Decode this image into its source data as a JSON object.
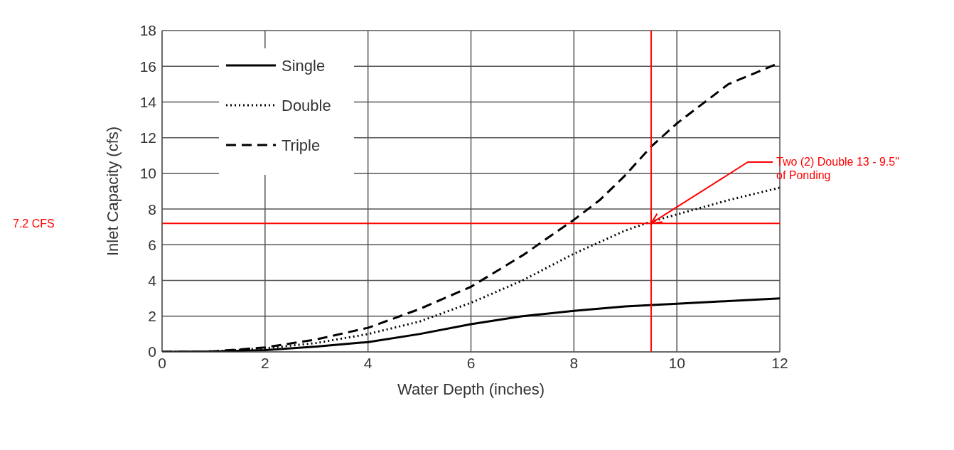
{
  "chart_data": {
    "type": "line",
    "xlabel": "Water Depth (inches)",
    "ylabel": "Inlet Capacity (cfs)",
    "xlim": [
      0,
      12
    ],
    "xticks": [
      0,
      2,
      4,
      6,
      8,
      10,
      12
    ],
    "ylim": [
      0,
      18
    ],
    "yticks": [
      0,
      2,
      4,
      6,
      8,
      10,
      12,
      14,
      16,
      18
    ],
    "grid": true,
    "legend": "top left",
    "marker": "none",
    "series": [
      {
        "name": "Single",
        "color": "#000000",
        "line_style": "solid",
        "x": [
          0,
          1,
          2,
          3,
          4,
          5,
          6,
          7,
          8,
          9,
          10,
          11,
          12
        ],
        "values": [
          0,
          0.02,
          0.1,
          0.3,
          0.55,
          1.0,
          1.55,
          2.0,
          2.3,
          2.55,
          2.7,
          2.85,
          3.0
        ]
      },
      {
        "name": "Double",
        "color": "#000000",
        "line_style": "dotted",
        "x": [
          0,
          1,
          2,
          3,
          4,
          5,
          6,
          7,
          8,
          9,
          9.5,
          10,
          11,
          12
        ],
        "values": [
          0,
          0.03,
          0.2,
          0.5,
          1.0,
          1.7,
          2.75,
          4.0,
          5.5,
          6.8,
          7.3,
          7.7,
          8.5,
          9.2
        ]
      },
      {
        "name": "Triple",
        "color": "#000000",
        "line_style": "dashed",
        "x": [
          0,
          1,
          2,
          3,
          4,
          5,
          6,
          7,
          8,
          8.5,
          9,
          9.5,
          10,
          11,
          12
        ],
        "values": [
          0,
          0.03,
          0.25,
          0.7,
          1.35,
          2.4,
          3.65,
          5.4,
          7.4,
          8.5,
          9.9,
          11.5,
          12.8,
          15.0,
          16.2
        ]
      }
    ],
    "ref_lines": [
      {
        "axis": "y",
        "value": 7.2,
        "label": "7.2 CFS",
        "color": "#ff0000"
      },
      {
        "axis": "x",
        "value": 9.5,
        "color": "#ff0000"
      }
    ],
    "annotations": [
      {
        "text": "Two (2) Double 13 - 9.5\" of Ponding",
        "x": 9.5,
        "y": 7.2
      }
    ]
  }
}
